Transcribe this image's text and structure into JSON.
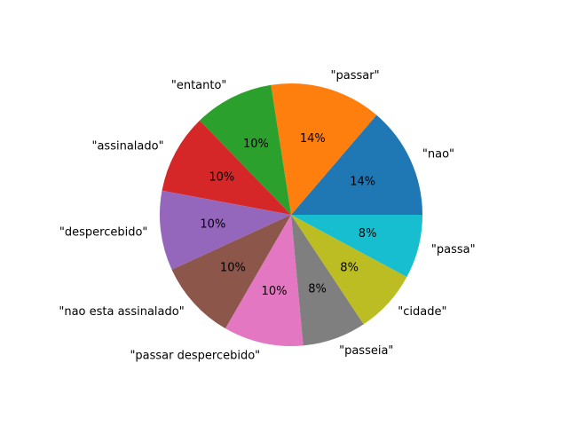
{
  "chart_data": {
    "type": "pie",
    "title": "",
    "labels": [
      "\"nao\"",
      "\"passar\"",
      "\"entanto\"",
      "\"assinalado\"",
      "\"despercebido\"",
      "\"nao esta assinalado\"",
      "\"passar despercebido\"",
      "\"passeia\"",
      "\"cidade\"",
      "\"passa\""
    ],
    "values": [
      14,
      14,
      10,
      10,
      10,
      10,
      10,
      8,
      8,
      8
    ],
    "percent_labels": [
      "14%",
      "14%",
      "10%",
      "10%",
      "10%",
      "10%",
      "10%",
      "8%",
      "8%",
      "8%"
    ],
    "colors": [
      "#1f77b4",
      "#ff7f0e",
      "#2ca02c",
      "#d62728",
      "#9467bd",
      "#8c564b",
      "#e377c2",
      "#7f7f7f",
      "#bcbd22",
      "#17becf"
    ],
    "start_angle_deg": 0,
    "direction": "counterclockwise",
    "legend": "none"
  }
}
